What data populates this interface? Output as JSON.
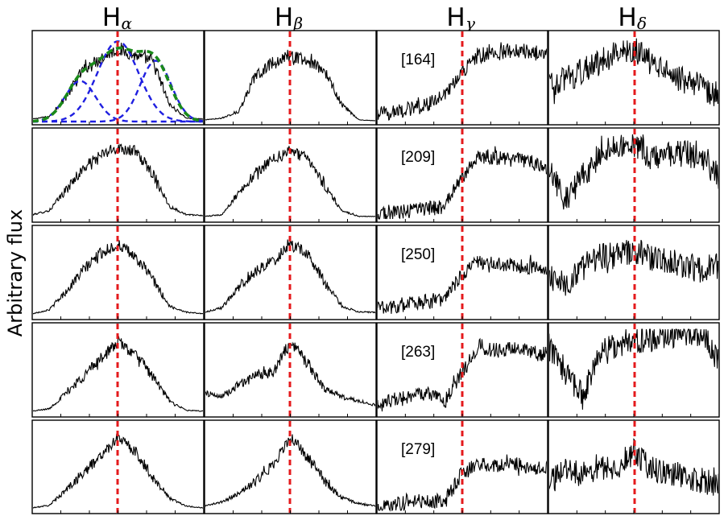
{
  "figure": {
    "ylabel": "Arbitrary flux"
  },
  "chart_data": {
    "type": "line",
    "ylabel": "Arbitrary flux",
    "columns": [
      {
        "letter": "H",
        "sub": "α"
      },
      {
        "letter": "H",
        "sub": "β"
      },
      {
        "letter": "H",
        "sub": "γ"
      },
      {
        "letter": "H",
        "sub": "δ"
      }
    ],
    "rows": [
      {
        "label": "[164]"
      },
      {
        "label": "[209]"
      },
      {
        "label": "[250]"
      },
      {
        "label": "[263]"
      },
      {
        "label": "[279]"
      }
    ],
    "x_ticks_shown": false,
    "y_ticks_shown": false,
    "reference_line": {
      "style": "dashed",
      "color": "#e41a1c",
      "x_fraction": [
        0.5,
        0.5,
        0.5,
        0.5
      ]
    },
    "observed_color": "#000000",
    "fit_components_color": "#1f1fe0",
    "fit_total_color": "#1a8a1a",
    "fit_panel": {
      "row": 0,
      "col": 0,
      "components": 3
    },
    "values": [
      [
        {
          "x": [
            0,
            0.1,
            0.2,
            0.3,
            0.4,
            0.5,
            0.6,
            0.7,
            0.8,
            0.9,
            1.0
          ],
          "y": [
            0.03,
            0.06,
            0.3,
            0.62,
            0.75,
            0.85,
            0.78,
            0.72,
            0.2,
            0.04,
            0.03
          ]
        },
        {
          "x": [
            0,
            0.1,
            0.2,
            0.3,
            0.4,
            0.5,
            0.6,
            0.7,
            0.8,
            0.9,
            1.0
          ],
          "y": [
            0.02,
            0.04,
            0.12,
            0.55,
            0.7,
            0.78,
            0.72,
            0.6,
            0.2,
            0.02,
            0.01
          ]
        },
        {
          "x": [
            0,
            0.1,
            0.2,
            0.3,
            0.4,
            0.5,
            0.6,
            0.7,
            0.8,
            0.9,
            1.0
          ],
          "y": [
            0.08,
            0.12,
            0.15,
            0.2,
            0.3,
            0.6,
            0.78,
            0.8,
            0.85,
            0.82,
            0.78
          ]
        },
        {
          "x": [
            0,
            0.1,
            0.2,
            0.3,
            0.4,
            0.5,
            0.6,
            0.7,
            0.8,
            0.9,
            1.0
          ],
          "y": [
            0.4,
            0.5,
            0.6,
            0.7,
            0.82,
            0.85,
            0.7,
            0.6,
            0.5,
            0.4,
            0.3
          ]
        }
      ],
      [
        {
          "x": [
            0,
            0.1,
            0.2,
            0.3,
            0.4,
            0.5,
            0.6,
            0.7,
            0.8,
            0.9,
            1.0
          ],
          "y": [
            0.05,
            0.1,
            0.35,
            0.6,
            0.75,
            0.85,
            0.8,
            0.55,
            0.15,
            0.05,
            0.04
          ]
        },
        {
          "x": [
            0,
            0.1,
            0.2,
            0.3,
            0.4,
            0.5,
            0.6,
            0.7,
            0.8,
            0.9,
            1.0
          ],
          "y": [
            0.03,
            0.05,
            0.3,
            0.55,
            0.7,
            0.82,
            0.72,
            0.4,
            0.1,
            0.03,
            0.03
          ]
        },
        {
          "x": [
            0,
            0.1,
            0.2,
            0.3,
            0.4,
            0.5,
            0.6,
            0.7,
            0.8,
            0.9,
            1.0
          ],
          "y": [
            0.05,
            0.07,
            0.1,
            0.12,
            0.15,
            0.5,
            0.75,
            0.72,
            0.7,
            0.68,
            0.6
          ]
        },
        {
          "x": [
            0,
            0.1,
            0.2,
            0.3,
            0.4,
            0.5,
            0.6,
            0.7,
            0.8,
            0.9,
            1.0
          ],
          "y": [
            0.6,
            0.2,
            0.5,
            0.75,
            0.88,
            0.9,
            0.7,
            0.75,
            0.78,
            0.72,
            0.5
          ]
        }
      ],
      [
        {
          "x": [
            0,
            0.1,
            0.2,
            0.3,
            0.4,
            0.5,
            0.6,
            0.7,
            0.8,
            0.9,
            1.0
          ],
          "y": [
            0.03,
            0.08,
            0.3,
            0.55,
            0.75,
            0.85,
            0.7,
            0.45,
            0.12,
            0.05,
            0.03
          ]
        },
        {
          "x": [
            0,
            0.1,
            0.2,
            0.3,
            0.4,
            0.5,
            0.6,
            0.7,
            0.8,
            0.9,
            1.0
          ],
          "y": [
            0.05,
            0.1,
            0.35,
            0.55,
            0.65,
            0.85,
            0.75,
            0.4,
            0.12,
            0.05,
            0.05
          ]
        },
        {
          "x": [
            0,
            0.1,
            0.2,
            0.3,
            0.4,
            0.5,
            0.6,
            0.7,
            0.8,
            0.9,
            1.0
          ],
          "y": [
            0.1,
            0.12,
            0.15,
            0.18,
            0.2,
            0.5,
            0.65,
            0.62,
            0.6,
            0.58,
            0.52
          ]
        },
        {
          "x": [
            0,
            0.1,
            0.2,
            0.3,
            0.4,
            0.5,
            0.6,
            0.7,
            0.8,
            0.9,
            1.0
          ],
          "y": [
            0.5,
            0.35,
            0.6,
            0.7,
            0.72,
            0.78,
            0.7,
            0.65,
            0.6,
            0.55,
            0.6
          ]
        }
      ],
      [
        {
          "x": [
            0,
            0.1,
            0.2,
            0.3,
            0.4,
            0.5,
            0.6,
            0.7,
            0.8,
            0.9,
            1.0
          ],
          "y": [
            0.03,
            0.06,
            0.25,
            0.45,
            0.65,
            0.85,
            0.7,
            0.45,
            0.15,
            0.04,
            0.03
          ]
        },
        {
          "x": [
            0,
            0.1,
            0.2,
            0.3,
            0.4,
            0.5,
            0.6,
            0.7,
            0.8,
            0.9,
            1.0
          ],
          "y": [
            0.25,
            0.2,
            0.35,
            0.45,
            0.5,
            0.85,
            0.6,
            0.3,
            0.2,
            0.15,
            0.1
          ]
        },
        {
          "x": [
            0,
            0.1,
            0.2,
            0.3,
            0.4,
            0.5,
            0.6,
            0.7,
            0.8,
            0.9,
            1.0
          ],
          "y": [
            0.1,
            0.15,
            0.2,
            0.25,
            0.15,
            0.5,
            0.8,
            0.75,
            0.78,
            0.72,
            0.7
          ]
        },
        {
          "x": [
            0,
            0.1,
            0.2,
            0.3,
            0.4,
            0.5,
            0.6,
            0.7,
            0.8,
            0.9,
            1.0
          ],
          "y": [
            0.8,
            0.5,
            0.2,
            0.75,
            0.82,
            0.88,
            0.88,
            0.9,
            0.95,
            0.92,
            0.6
          ]
        }
      ],
      [
        {
          "x": [
            0,
            0.1,
            0.2,
            0.3,
            0.4,
            0.5,
            0.6,
            0.7,
            0.8,
            0.9,
            1.0
          ],
          "y": [
            0.03,
            0.06,
            0.25,
            0.45,
            0.65,
            0.88,
            0.7,
            0.4,
            0.15,
            0.05,
            0.03
          ]
        },
        {
          "x": [
            0,
            0.1,
            0.2,
            0.3,
            0.4,
            0.5,
            0.6,
            0.7,
            0.8,
            0.9,
            1.0
          ],
          "y": [
            0.05,
            0.1,
            0.2,
            0.35,
            0.55,
            0.88,
            0.65,
            0.35,
            0.15,
            0.08,
            0.05
          ]
        },
        {
          "x": [
            0,
            0.1,
            0.2,
            0.3,
            0.4,
            0.5,
            0.6,
            0.7,
            0.8,
            0.9,
            1.0
          ],
          "y": [
            0.05,
            0.07,
            0.1,
            0.12,
            0.1,
            0.45,
            0.55,
            0.52,
            0.55,
            0.52,
            0.5
          ]
        },
        {
          "x": [
            0,
            0.1,
            0.2,
            0.3,
            0.4,
            0.5,
            0.6,
            0.7,
            0.8,
            0.9,
            1.0
          ],
          "y": [
            0.3,
            0.5,
            0.4,
            0.55,
            0.45,
            0.72,
            0.5,
            0.45,
            0.4,
            0.35,
            0.3
          ]
        }
      ]
    ]
  }
}
